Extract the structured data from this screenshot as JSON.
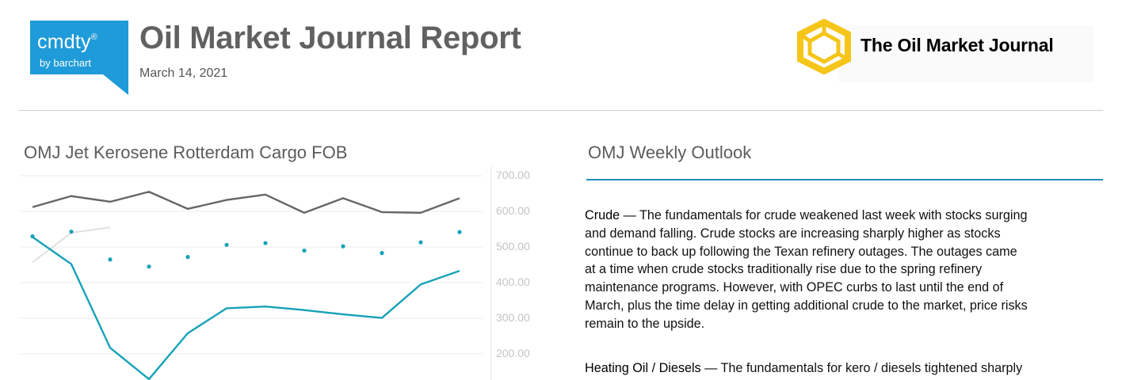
{
  "header": {
    "brand_logo": {
      "name": "cmdty",
      "registered_mark": "®",
      "tagline": "by barchart",
      "color": "#1e9bd8"
    },
    "title": "Oil Market Journal Report",
    "date": "March 14, 2021",
    "publisher_logo": {
      "name": "The Oil Market Journal",
      "icon": "yellow-hexagon-icon",
      "color": "#f5c518"
    }
  },
  "chart": {
    "title": "OMJ Jet Kerosene Rotterdam Cargo FOB",
    "chart_data": {
      "type": "line",
      "title": "OMJ Jet Kerosene Rotterdam Cargo FOB",
      "y_axis_position": "right",
      "yticks": [
        "700.00",
        "600.00",
        "500.00",
        "400.00",
        "300.00",
        "200.00"
      ],
      "ylim_visible": [
        145,
        705
      ],
      "grid": true,
      "series": [
        {
          "style": "line",
          "color": "#666666",
          "values": [
            612,
            643,
            627,
            655,
            607,
            632,
            647,
            596,
            637,
            598,
            596,
            637
          ]
        },
        {
          "style": "dots",
          "color": "#17a2b8",
          "values": [
            530,
            543,
            465,
            445,
            472,
            506,
            511,
            490,
            502,
            483,
            513,
            542
          ]
        },
        {
          "style": "line",
          "color": "#e0e0e0",
          "values": [
            457,
            540,
            555
          ]
        },
        {
          "style": "line",
          "color": "#17a2b8",
          "values": [
            528,
            452,
            217,
            129,
            258,
            328,
            333,
            323,
            311,
            301,
            395,
            433
          ]
        }
      ]
    }
  },
  "outlook": {
    "title": "OMJ Weekly Outlook",
    "paragraphs": [
      {
        "heading": "Crude",
        "lines": [
          " — The fundamentals for crude weakened last week with stocks surging",
          "and demand falling. Crude stocks are increasing sharply higher as stocks",
          "continue to back up following the Texan refinery outages. The outages came",
          "at a time when crude stocks traditionally rise due to the spring refinery",
          "maintenance programs. However, with OPEC curbs to last until the end of",
          "March, plus the time delay in getting additional crude to the market, price risks",
          "remain to the upside."
        ]
      },
      {
        "heading": "Heating Oil / Diesels",
        "lines": [
          " — The fundamentals for kero / diesels tightened sharply"
        ]
      }
    ]
  }
}
